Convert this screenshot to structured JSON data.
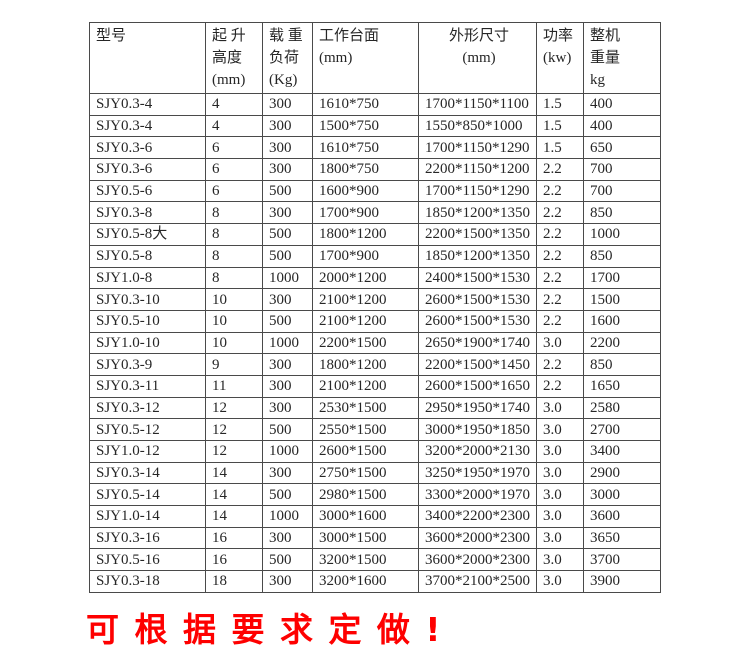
{
  "table": {
    "headers": [
      {
        "id": "model",
        "lines": [
          "型号"
        ]
      },
      {
        "id": "lift-height",
        "lines": [
          "起 升",
          "高度",
          "(mm)"
        ]
      },
      {
        "id": "load",
        "lines": [
          "载 重",
          "负荷",
          "(Kg)"
        ]
      },
      {
        "id": "platform",
        "lines": [
          "工作台面",
          "(mm)"
        ]
      },
      {
        "id": "dimensions",
        "lines": [
          "外形尺寸",
          "(mm)"
        ],
        "align": "center"
      },
      {
        "id": "power",
        "lines": [
          "功率",
          "(kw)"
        ]
      },
      {
        "id": "weight",
        "lines": [
          "整机",
          "重量",
          "kg"
        ]
      }
    ],
    "rows": [
      [
        "SJY0.3-4",
        "4",
        "300",
        "1610*750",
        "1700*1150*1100",
        "1.5",
        "400"
      ],
      [
        "SJY0.3-4",
        "4",
        "300",
        "1500*750",
        "1550*850*1000",
        "1.5",
        "400"
      ],
      [
        "SJY0.3-6",
        "6",
        "300",
        "1610*750",
        "1700*1150*1290",
        "1.5",
        "650"
      ],
      [
        "SJY0.3-6",
        "6",
        "300",
        "1800*750",
        "2200*1150*1200",
        "2.2",
        "700"
      ],
      [
        "SJY0.5-6",
        "6",
        "500",
        "1600*900",
        "1700*1150*1290",
        "2.2",
        "700"
      ],
      [
        "SJY0.3-8",
        "8",
        "300",
        "1700*900",
        "1850*1200*1350",
        "2.2",
        "850"
      ],
      [
        "SJY0.5-8大",
        "8",
        "500",
        "1800*1200",
        "2200*1500*1350",
        "2.2",
        "1000"
      ],
      [
        "SJY0.5-8",
        "8",
        "500",
        "1700*900",
        "1850*1200*1350",
        "2.2",
        "850"
      ],
      [
        "SJY1.0-8",
        "8",
        "1000",
        "2000*1200",
        "2400*1500*1530",
        "2.2",
        "1700"
      ],
      [
        "SJY0.3-10",
        "10",
        "300",
        "2100*1200",
        "2600*1500*1530",
        "2.2",
        "1500"
      ],
      [
        "SJY0.5-10",
        "10",
        "500",
        "2100*1200",
        "2600*1500*1530",
        "2.2",
        "1600"
      ],
      [
        "SJY1.0-10",
        "10",
        "1000",
        "2200*1500",
        "2650*1900*1740",
        "3.0",
        "2200"
      ],
      [
        "SJY0.3-9",
        "9",
        "300",
        "1800*1200",
        "2200*1500*1450",
        "2.2",
        "850"
      ],
      [
        "SJY0.3-11",
        "11",
        "300",
        "2100*1200",
        "2600*1500*1650",
        "2.2",
        "1650"
      ],
      [
        "SJY0.3-12",
        "12",
        "300",
        "2530*1500",
        "2950*1950*1740",
        "3.0",
        "2580"
      ],
      [
        "SJY0.5-12",
        "12",
        "500",
        "2550*1500",
        "3000*1950*1850",
        "3.0",
        "2700"
      ],
      [
        "SJY1.0-12",
        "12",
        "1000",
        "2600*1500",
        "3200*2000*2130",
        "3.0",
        "3400"
      ],
      [
        "SJY0.3-14",
        "14",
        "300",
        "2750*1500",
        "3250*1950*1970",
        "3.0",
        "2900"
      ],
      [
        "SJY0.5-14",
        "14",
        "500",
        "2980*1500",
        "3300*2000*1970",
        "3.0",
        "3000"
      ],
      [
        "SJY1.0-14",
        "14",
        "1000",
        "3000*1600",
        "3400*2200*2300",
        "3.0",
        "3600"
      ],
      [
        "SJY0.3-16",
        "16",
        "300",
        "3000*1500",
        "3600*2000*2300",
        "3.0",
        "3650"
      ],
      [
        "SJY0.5-16",
        "16",
        "500",
        "3200*1500",
        "3600*2000*2300",
        "3.0",
        "3700"
      ],
      [
        "SJY0.3-18",
        "18",
        "300",
        "3200*1600",
        "3700*2100*2500",
        "3.0",
        "3900"
      ]
    ]
  },
  "footer": {
    "note": "可 根 据 要 求 定 做 !"
  },
  "colors": {
    "note_red": "#fe0000",
    "table_text": "#262626",
    "table_border": "#4a4a4a"
  }
}
